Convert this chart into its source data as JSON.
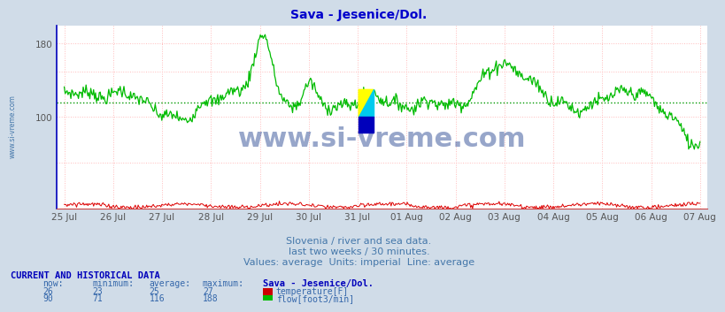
{
  "title": "Sava - Jesenice/Dol.",
  "title_color": "#0000cc",
  "bg_color": "#d0dce8",
  "plot_bg_color": "#ffffff",
  "flow_avg": 116,
  "temp_avg": 25,
  "x_labels": [
    "25 Jul",
    "26 Jul",
    "27 Jul",
    "28 Jul",
    "29 Jul",
    "30 Jul",
    "31 Jul",
    "01 Aug",
    "02 Aug",
    "03 Aug",
    "04 Aug",
    "05 Aug",
    "06 Aug",
    "07 Aug"
  ],
  "y_min": 0,
  "y_max": 200,
  "yticks": [
    100,
    180
  ],
  "flow_color": "#00bb00",
  "temp_color": "#dd0000",
  "avg_line_color": "#009900",
  "grid_color": "#ffbbbb",
  "watermark": "www.si-vreme.com",
  "watermark_color": "#1a3a8a",
  "subtitle1": "Slovenia / river and sea data.",
  "subtitle2": "last two weeks / 30 minutes.",
  "subtitle3": "Values: average  Units: imperial  Line: average",
  "subtitle_color": "#4477aa",
  "table_header_color": "#0000bb",
  "table_data_color": "#3366aa",
  "table_title_color": "#0000bb",
  "now_flow": 90,
  "min_flow": 71,
  "avg_flow": 116,
  "max_flow": 188,
  "now_temp": 26,
  "min_temp": 23,
  "avg_temp": 25,
  "max_temp": 27,
  "left_label_color": "#4477aa"
}
